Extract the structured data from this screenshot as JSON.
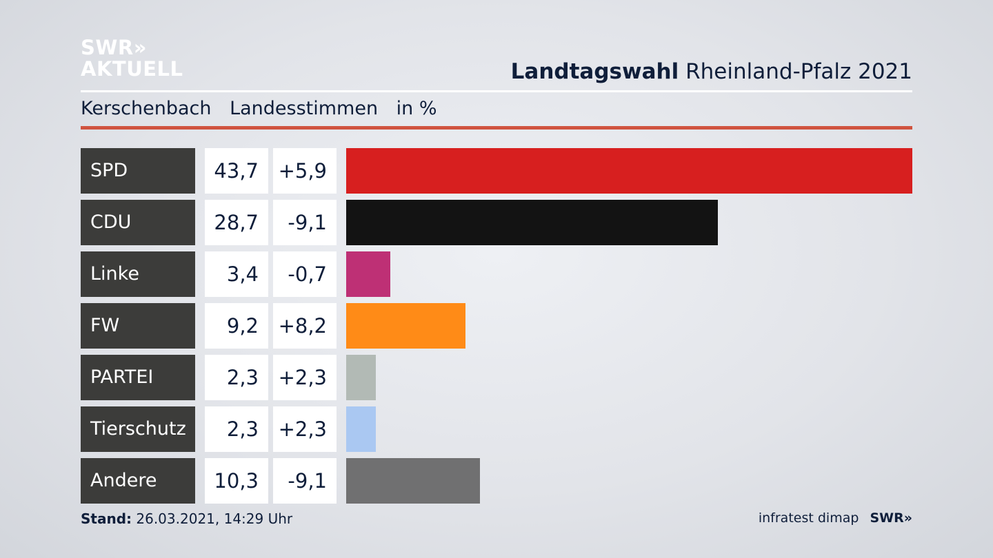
{
  "logo": {
    "line1": "SWR»",
    "line2": "AKTUELL"
  },
  "header": {
    "title_bold": "Landtagswahl",
    "title_rest": "Rheinland-Pfalz 2021"
  },
  "subheader": {
    "place": "Kerschenbach",
    "type": "Landesstimmen",
    "unit": "in %"
  },
  "chart_data": {
    "type": "bar",
    "orientation": "horizontal",
    "categories": [
      "SPD",
      "CDU",
      "Linke",
      "FW",
      "PARTEI",
      "Tierschutz",
      "Andere"
    ],
    "values": [
      43.7,
      28.7,
      3.4,
      9.2,
      2.3,
      2.3,
      10.3
    ],
    "values_label": [
      "43,7",
      "28,7",
      "3,4",
      "9,2",
      "2,3",
      "2,3",
      "10,3"
    ],
    "diff_label": [
      "+5,9",
      "-9,1",
      "-0,7",
      "+8,2",
      "+2,3",
      "+2,3",
      "-9,1"
    ],
    "colors": [
      "#d71f1f",
      "#131313",
      "#be3075",
      "#ff8b17",
      "#b2bab5",
      "#aac8f2",
      "#707071"
    ],
    "xlim": [
      0,
      43.7
    ]
  },
  "footer": {
    "stand_label": "Stand:",
    "stand_value": "26.03.2021, 14:29 Uhr",
    "source": "infratest dimap",
    "brand": "SWR»"
  }
}
